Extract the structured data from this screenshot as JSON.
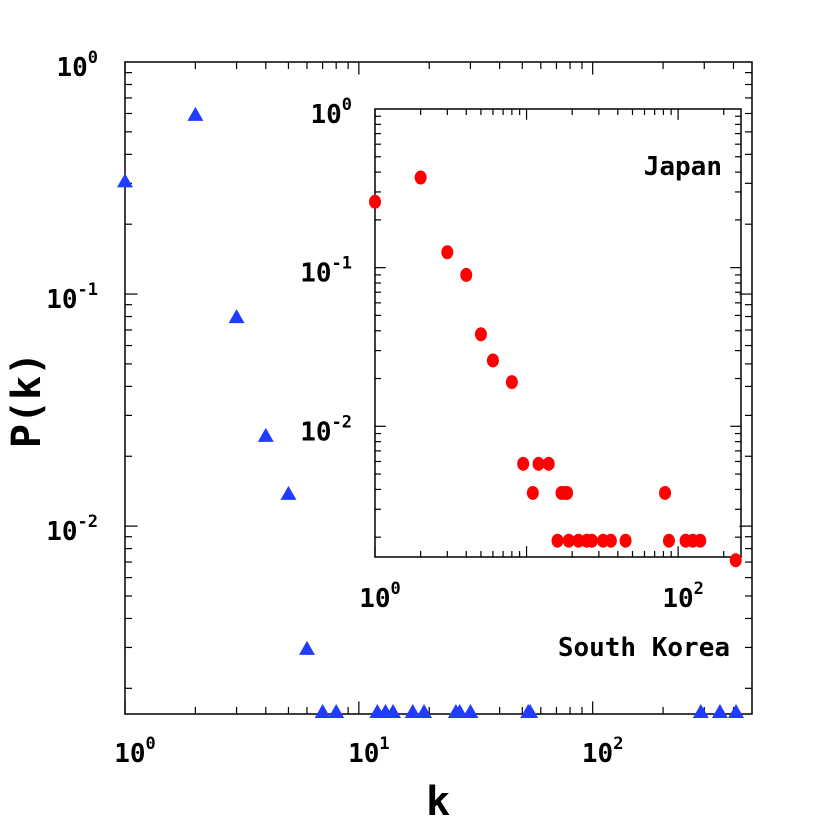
{
  "chart_data": [
    {
      "panel": "main",
      "type": "scatter",
      "xlabel": "k",
      "ylabel": "P(k)",
      "xscale": "log",
      "yscale": "log",
      "xlim": [
        1,
        480
      ],
      "ylim": [
        0.00155,
        1
      ],
      "x_ticks": [
        {
          "base": "10",
          "exp": "0",
          "value": 1
        },
        {
          "base": "10",
          "exp": "1",
          "value": 10
        },
        {
          "base": "10",
          "exp": "2",
          "value": 100
        }
      ],
      "y_ticks": [
        {
          "base": "10",
          "exp": "0",
          "value": 1
        },
        {
          "base": "10",
          "exp": "-1",
          "value": 0.1
        },
        {
          "base": "10",
          "exp": "-2",
          "value": 0.01
        }
      ],
      "annotation": "South Korea",
      "marker": "triangle",
      "color": "#1f3cff",
      "series": [
        {
          "points": [
            [
              1,
              0.3
            ],
            [
              2,
              0.58
            ],
            [
              3,
              0.078
            ],
            [
              4,
              0.024
            ],
            [
              5,
              0.0135
            ],
            [
              6,
              0.0029
            ],
            [
              7,
              0.00155
            ],
            [
              8,
              0.00155
            ],
            [
              12,
              0.00155
            ],
            [
              13,
              0.00155
            ],
            [
              14,
              0.00155
            ],
            [
              17,
              0.00155
            ],
            [
              19,
              0.00155
            ],
            [
              26,
              0.00155
            ],
            [
              27,
              0.00155
            ],
            [
              30,
              0.00155
            ],
            [
              53,
              0.00155
            ],
            [
              54,
              0.00155
            ],
            [
              290,
              0.00155
            ],
            [
              350,
              0.00155
            ],
            [
              410,
              0.00155
            ]
          ]
        }
      ]
    },
    {
      "panel": "inset",
      "type": "scatter",
      "xscale": "log",
      "yscale": "log",
      "xlim": [
        1,
        260
      ],
      "ylim": [
        0.0015,
        1
      ],
      "x_ticks": [
        {
          "base": "10",
          "exp": "0",
          "value": 1
        },
        {
          "base": "10",
          "exp": "2",
          "value": 100
        }
      ],
      "y_ticks": [
        {
          "base": "10",
          "exp": "0",
          "value": 1
        },
        {
          "base": "10",
          "exp": "-1",
          "value": 0.1
        },
        {
          "base": "10",
          "exp": "-2",
          "value": 0.01
        }
      ],
      "annotation": "Japan",
      "marker": "circle",
      "color": "#ff0000",
      "series": [
        {
          "points": [
            [
              1,
              0.26
            ],
            [
              2,
              0.37
            ],
            [
              3,
              0.125
            ],
            [
              4,
              0.09
            ],
            [
              5,
              0.038
            ],
            [
              6,
              0.026
            ],
            [
              8,
              0.019
            ],
            [
              9.5,
              0.0058
            ],
            [
              11,
              0.0038
            ],
            [
              12,
              0.0058
            ],
            [
              14,
              0.0058
            ],
            [
              17,
              0.0038
            ],
            [
              18,
              0.0038
            ],
            [
              18.5,
              0.0038
            ],
            [
              16,
              0.0019
            ],
            [
              19,
              0.0019
            ],
            [
              22,
              0.0019
            ],
            [
              25,
              0.0019
            ],
            [
              27,
              0.0019
            ],
            [
              32,
              0.0019
            ],
            [
              36,
              0.0019
            ],
            [
              45,
              0.0019
            ],
            [
              82,
              0.0038
            ],
            [
              87,
              0.0019
            ],
            [
              112,
              0.0019
            ],
            [
              125,
              0.0019
            ],
            [
              140,
              0.0019
            ],
            [
              240,
              0.00143
            ]
          ]
        }
      ]
    }
  ]
}
